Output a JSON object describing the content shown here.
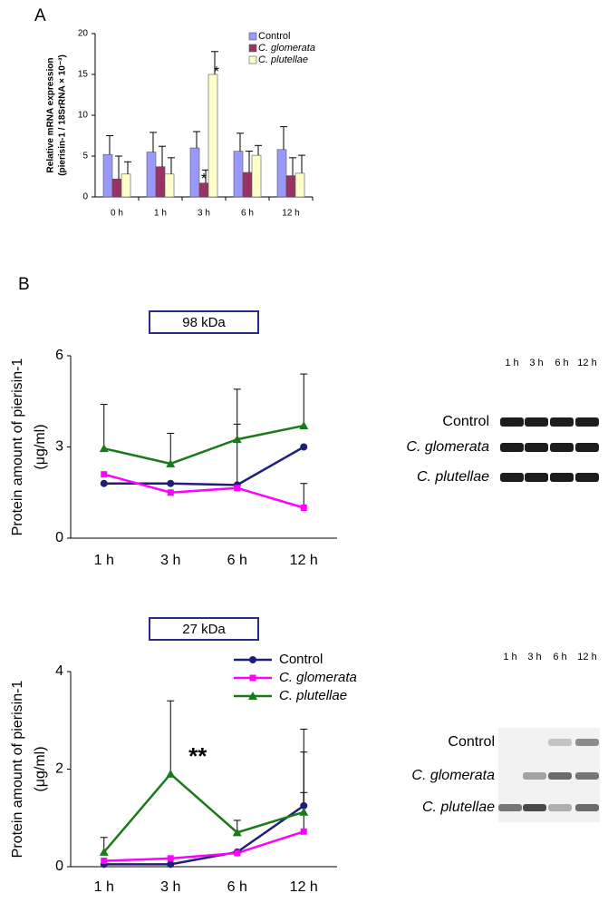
{
  "panels": [
    "A",
    "B"
  ],
  "chart_data": [
    {
      "type": "bar",
      "ylabel": [
        "Relative mRNA expression",
        "(pierisin-1 / 18SrRNA × 10⁻³)"
      ],
      "categories": [
        "0 h",
        "1 h",
        "3 h",
        "6 h",
        "12 h"
      ],
      "series": [
        {
          "name": "Control",
          "color": "#9999ff",
          "values": [
            5.2,
            5.5,
            6.0,
            5.6,
            5.8
          ],
          "errors": [
            2.3,
            2.4,
            2.0,
            2.2,
            2.8
          ]
        },
        {
          "name": "C. glomerata",
          "color": "#993366",
          "values": [
            2.2,
            3.7,
            1.7,
            3.0,
            2.6
          ],
          "errors": [
            2.8,
            2.5,
            1.6,
            2.6,
            2.2
          ]
        },
        {
          "name": "C. plutellae",
          "color": "#ffffcc",
          "values": [
            2.8,
            2.8,
            15.0,
            5.1,
            2.9
          ],
          "errors": [
            1.5,
            2.0,
            2.8,
            1.2,
            2.2
          ]
        }
      ],
      "annotations": [
        "*",
        "*"
      ],
      "ylim": [
        0,
        20
      ],
      "yticks": [
        0,
        5,
        10,
        15,
        20
      ],
      "legend": "right"
    },
    {
      "type": "line",
      "box_label": "98 kDa",
      "ylabel": [
        "Protein amount of pierisin-1",
        "(μg/ml)"
      ],
      "categories": [
        "1 h",
        "3 h",
        "6 h",
        "12 h"
      ],
      "series": [
        {
          "name": "Control",
          "color": "#1f1f7a",
          "marker": "circle",
          "values": [
            1.8,
            1.8,
            1.75,
            3.0
          ],
          "errors": [
            null,
            null,
            2.0,
            null
          ]
        },
        {
          "name": "C. glomerata",
          "color": "#ff00ff",
          "marker": "square",
          "values": [
            2.1,
            1.5,
            1.65,
            1.0
          ],
          "errors": [
            null,
            null,
            null,
            0.8
          ]
        },
        {
          "name": "C. plutellae",
          "color": "#1a7a1a",
          "marker": "triangle",
          "values": [
            2.95,
            2.45,
            3.25,
            3.7
          ],
          "errors": [
            1.45,
            1.0,
            1.65,
            1.7
          ]
        }
      ],
      "ylim": [
        0,
        6
      ],
      "yticks": [
        0,
        3,
        6
      ]
    },
    {
      "type": "line",
      "box_label": "27 kDa",
      "ylabel": [
        "Protein amount of pierisin-1",
        "(μg/ml)"
      ],
      "categories": [
        "1 h",
        "3 h",
        "6 h",
        "12 h"
      ],
      "series": [
        {
          "name": "Control",
          "color": "#1f1f7a",
          "marker": "circle",
          "values": [
            0.05,
            0.05,
            0.3,
            1.25
          ],
          "errors": [
            null,
            null,
            null,
            1.1
          ]
        },
        {
          "name": "C. glomerata",
          "color": "#ff00ff",
          "marker": "square",
          "values": [
            0.12,
            0.17,
            0.28,
            0.72
          ],
          "errors": [
            null,
            null,
            null,
            0.8
          ]
        },
        {
          "name": "C. plutellae",
          "color": "#1a7a1a",
          "marker": "triangle",
          "values": [
            0.3,
            1.9,
            0.7,
            1.12
          ],
          "errors": [
            0.3,
            1.5,
            0.25,
            1.7
          ]
        }
      ],
      "annotations": [
        "**"
      ],
      "ylim": [
        0,
        4
      ],
      "yticks": [
        0,
        2,
        4
      ],
      "legend": "top"
    }
  ],
  "blots": [
    {
      "lanes": [
        "1 h",
        "3 h",
        "6 h",
        "12 h"
      ],
      "rows": [
        "Control",
        "C. glomerata",
        "C. plutellae"
      ]
    },
    {
      "lanes": [
        "1 h",
        "3 h",
        "6 h",
        "12 h"
      ],
      "rows": [
        "Control",
        "C. glomerata",
        "C. plutellae"
      ]
    }
  ]
}
